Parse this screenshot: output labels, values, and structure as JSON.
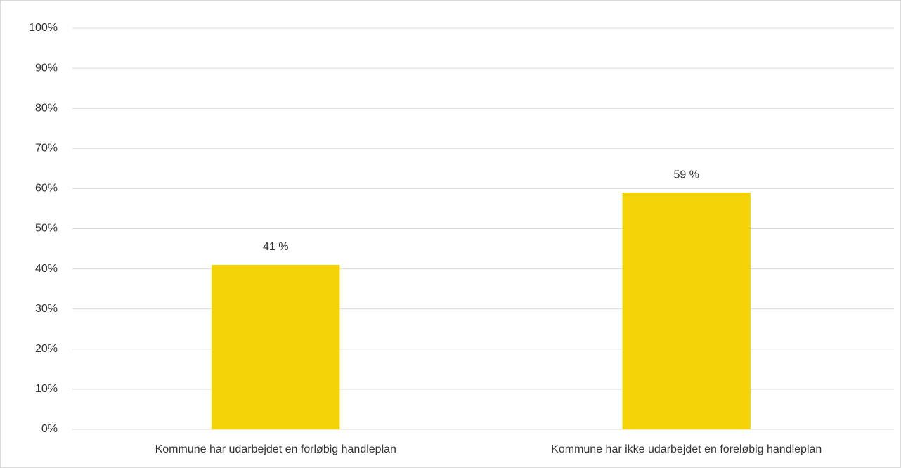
{
  "chart_data": {
    "type": "bar",
    "categories": [
      "Kommune har udarbejdet en forløbig handleplan",
      "Kommune har ikke udarbejdet en foreløbig handleplan"
    ],
    "values": [
      41,
      59
    ],
    "value_labels": [
      "41 %",
      "59 %"
    ],
    "color": "#f5d407",
    "ylim": [
      0,
      100
    ],
    "yticks": [
      {
        "value": 0,
        "label": "0%"
      },
      {
        "value": 10,
        "label": "10%"
      },
      {
        "value": 20,
        "label": "20%"
      },
      {
        "value": 30,
        "label": "30%"
      },
      {
        "value": 40,
        "label": "40%"
      },
      {
        "value": 50,
        "label": "50%"
      },
      {
        "value": 60,
        "label": "60%"
      },
      {
        "value": 70,
        "label": "70%"
      },
      {
        "value": 80,
        "label": "80%"
      },
      {
        "value": 90,
        "label": "90%"
      },
      {
        "value": 100,
        "label": "100%"
      }
    ],
    "grid": true
  }
}
